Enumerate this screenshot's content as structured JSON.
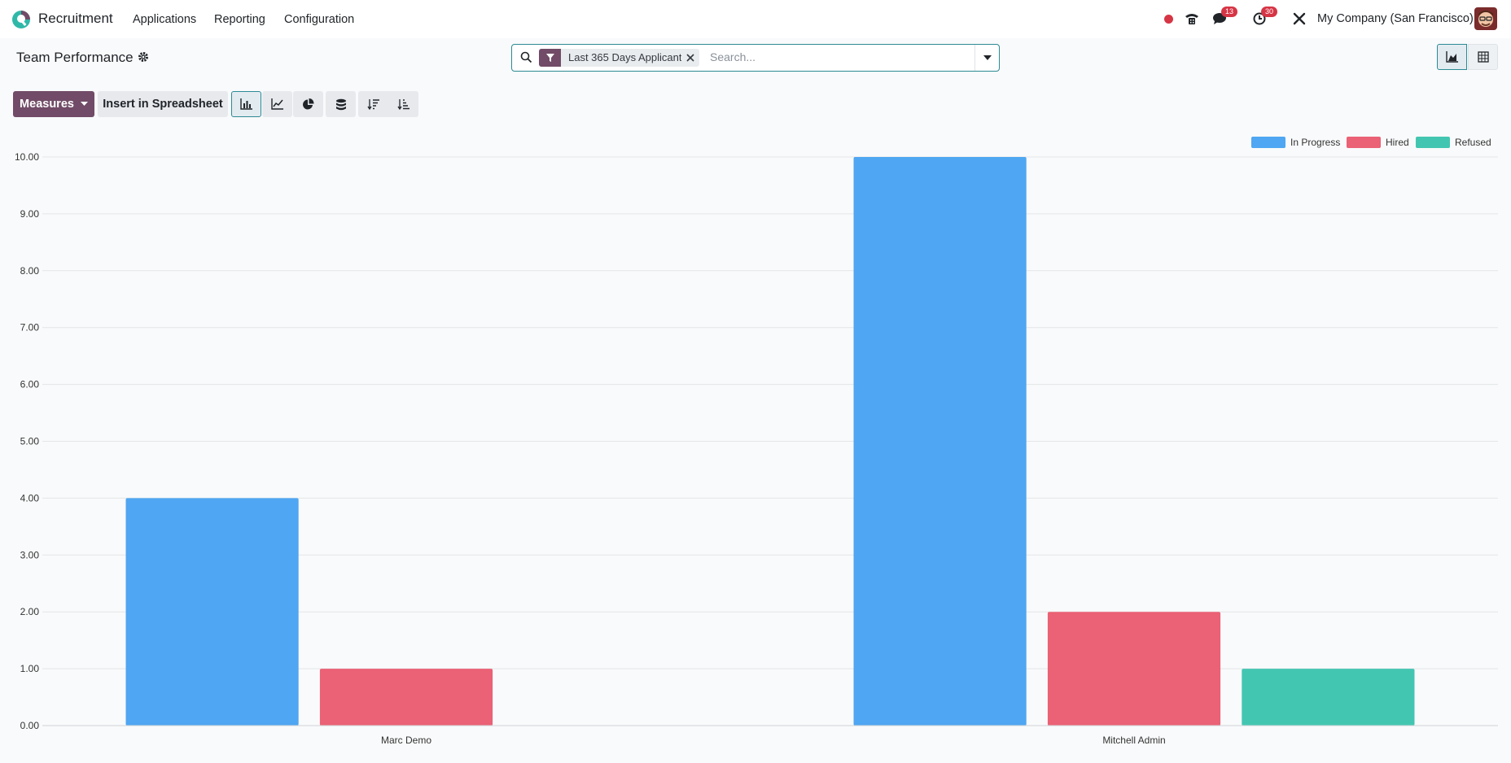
{
  "navbar": {
    "app_name": "Recruitment",
    "menus": [
      "Applications",
      "Reporting",
      "Configuration"
    ],
    "messages_count": "13",
    "activities_count": "30",
    "company": "My Company (San Francisco)"
  },
  "control_panel": {
    "page_title": "Team Performance",
    "search": {
      "facet_label": "Last 365 Days Applicant",
      "placeholder": "Search..."
    },
    "buttons": {
      "measures": "Measures",
      "insert_spreadsheet": "Insert in Spreadsheet"
    }
  },
  "colors": {
    "brand": "#714b67",
    "in_progress": "#4fa6f2",
    "hired": "#eb6175",
    "refused": "#43c6b1"
  },
  "chart_data": {
    "type": "bar",
    "categories": [
      "Marc Demo",
      "Mitchell Admin"
    ],
    "series": [
      {
        "name": "In Progress",
        "values": [
          4,
          10
        ],
        "color": "#4fa6f2"
      },
      {
        "name": "Hired",
        "values": [
          1,
          2
        ],
        "color": "#eb6175"
      },
      {
        "name": "Refused",
        "values": [
          0,
          1
        ],
        "color": "#43c6b1"
      }
    ],
    "yticks": [
      "0.00",
      "1.00",
      "2.00",
      "3.00",
      "4.00",
      "5.00",
      "6.00",
      "7.00",
      "8.00",
      "9.00",
      "10.00"
    ],
    "ylim": [
      0,
      10
    ],
    "legend_position": "top-right",
    "grid": true
  }
}
